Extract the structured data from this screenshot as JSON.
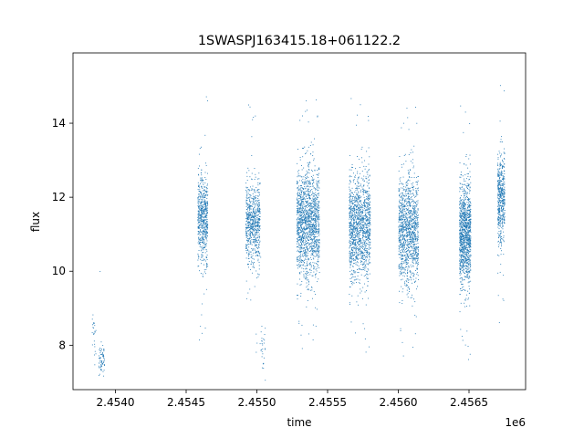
{
  "chart_data": {
    "type": "scatter",
    "title": "1SWASPJ163415.18+061122.2",
    "xlabel": "time",
    "ylabel": "flux",
    "x_offset_label": "1e6",
    "xlim": [
      2.4537,
      2.4569
    ],
    "ylim": [
      6.8,
      15.9
    ],
    "x_ticks": [
      2.454,
      2.4545,
      2.455,
      2.4555,
      2.456,
      2.4565
    ],
    "x_tick_labels": [
      "2.4540",
      "2.4545",
      "2.4550",
      "2.4555",
      "2.4560",
      "2.4565"
    ],
    "y_ticks": [
      8,
      10,
      12,
      14
    ],
    "y_tick_labels": [
      "8",
      "10",
      "12",
      "14"
    ],
    "grid": false,
    "marker_color": "#1f77b4",
    "clusters": [
      {
        "x_start": 2.45383,
        "x_end": 2.45386,
        "y_mean": 8.4,
        "y_spread": 0.35,
        "count": 25
      },
      {
        "x_start": 2.45388,
        "x_end": 2.45392,
        "y_mean": 7.6,
        "y_spread": 0.2,
        "count": 70
      },
      {
        "x_start": 2.45458,
        "x_end": 2.45465,
        "y_mean": 11.4,
        "y_spread": 0.6,
        "count": 600
      },
      {
        "x_start": 2.45492,
        "x_end": 2.45502,
        "y_mean": 11.3,
        "y_spread": 0.55,
        "count": 700
      },
      {
        "x_start": 2.45502,
        "x_end": 2.45506,
        "y_mean": 7.8,
        "y_spread": 0.4,
        "count": 30
      },
      {
        "x_start": 2.45528,
        "x_end": 2.45544,
        "y_mean": 11.3,
        "y_spread": 0.75,
        "count": 1500
      },
      {
        "x_start": 2.45565,
        "x_end": 2.4558,
        "y_mean": 11.2,
        "y_spread": 0.7,
        "count": 1300
      },
      {
        "x_start": 2.456,
        "x_end": 2.45614,
        "y_mean": 11.1,
        "y_spread": 0.75,
        "count": 1200
      },
      {
        "x_start": 2.45643,
        "x_end": 2.45651,
        "y_mean": 11.0,
        "y_spread": 0.7,
        "count": 1100
      },
      {
        "x_start": 2.4567,
        "x_end": 2.45675,
        "y_mean": 12.0,
        "y_spread": 0.6,
        "count": 500
      }
    ]
  }
}
